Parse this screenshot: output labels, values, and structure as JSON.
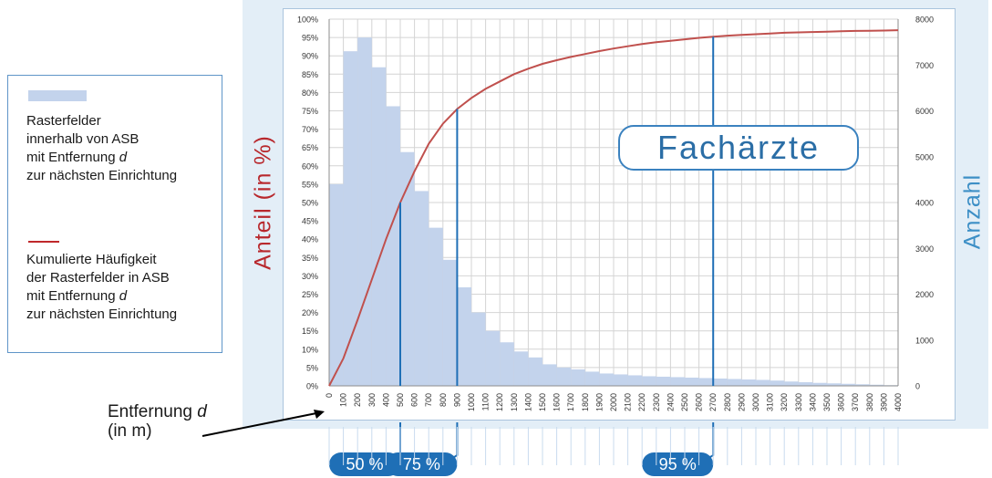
{
  "legend": {
    "bar_lines": [
      "Rasterfelder",
      "innerhalb von ASB",
      "mit Entfernung ",
      "zur nächsten Einrichtung"
    ],
    "bar_var": "d",
    "line_lines": [
      "Kumulierte Häufigkeit",
      "der Rasterfelder in ASB",
      "mit Entfernung ",
      "zur nächsten Einrichtung"
    ],
    "line_var": "d",
    "bar_color": "#c3d3ec",
    "line_color": "#c0282b"
  },
  "title_box": "Fachärzte",
  "left_axis_title": "Anteil (in %)",
  "right_axis_title": "Anzahl",
  "x_axis_title": {
    "line1": "Entfernung ",
    "var": "d",
    "line2": "(in m)"
  },
  "chart_data": {
    "type": "bar+line",
    "x_ticks": [
      "0",
      "100",
      "200",
      "300",
      "400",
      "500",
      "600",
      "700",
      "800",
      "900",
      "1000",
      "1100",
      "1200",
      "1300",
      "1400",
      "1500",
      "1600",
      "1700",
      "1800",
      "1900",
      "2000",
      "2100",
      "2200",
      "2300",
      "2400",
      "2500",
      "2600",
      "2700",
      "2800",
      "2900",
      "3000",
      "3100",
      "3200",
      "3300",
      "3400",
      "3500",
      "3600",
      "3700",
      "3800",
      "3900",
      "4000"
    ],
    "y_left_ticks": [
      "0%",
      "5%",
      "10%",
      "15%",
      "20%",
      "25%",
      "30%",
      "35%",
      "40%",
      "45%",
      "50%",
      "55%",
      "60%",
      "65%",
      "70%",
      "75%",
      "80%",
      "85%",
      "90%",
      "95%",
      "100%"
    ],
    "y_right_ticks": [
      "0",
      "1000",
      "2000",
      "3000",
      "4000",
      "5000",
      "6000",
      "7000",
      "8000"
    ],
    "ylim_left": [
      0,
      100
    ],
    "ylim_right": [
      0,
      8000
    ],
    "bar_series": {
      "name": "Rasterfelder innerhalb von ASB mit Entfernung d zur nächsten Einrichtung",
      "x_start": [
        0,
        100,
        200,
        300,
        400,
        500,
        600,
        700,
        800,
        900,
        1000,
        1100,
        1200,
        1300,
        1400,
        1500,
        1600,
        1700,
        1800,
        1900,
        2000,
        2100,
        2200,
        2300,
        2400,
        2500,
        2600,
        2700,
        2800,
        2900,
        3000,
        3100,
        3200,
        3300,
        3400,
        3500,
        3600,
        3700,
        3800,
        3900
      ],
      "values": [
        4400,
        7300,
        7600,
        6950,
        6100,
        5100,
        4250,
        3450,
        2750,
        2150,
        1600,
        1200,
        950,
        750,
        620,
        470,
        400,
        360,
        310,
        270,
        250,
        230,
        210,
        200,
        190,
        180,
        170,
        160,
        150,
        140,
        130,
        115,
        95,
        80,
        65,
        55,
        45,
        35,
        25,
        15
      ]
    },
    "line_series": {
      "name": "Kumulierte Häufigkeit der Rasterfelder in ASB mit Entfernung d zur nächsten Einrichtung",
      "x": [
        0,
        100,
        200,
        300,
        400,
        500,
        600,
        700,
        800,
        900,
        1000,
        1100,
        1200,
        1300,
        1400,
        1500,
        1600,
        1700,
        1800,
        1900,
        2000,
        2100,
        2200,
        2300,
        2400,
        2500,
        2600,
        2700,
        2800,
        2900,
        3000,
        3100,
        3200,
        3300,
        3400,
        3500,
        3600,
        3700,
        3800,
        3900,
        4000
      ],
      "values": [
        0,
        7.5,
        18,
        29,
        40,
        50,
        58.5,
        66,
        71.5,
        75.5,
        78.5,
        81,
        83,
        85,
        86.5,
        87.8,
        88.8,
        89.7,
        90.5,
        91.3,
        92,
        92.6,
        93.2,
        93.7,
        94.1,
        94.5,
        94.9,
        95.2,
        95.5,
        95.7,
        95.9,
        96.1,
        96.3,
        96.4,
        96.5,
        96.6,
        96.7,
        96.8,
        96.85,
        96.9,
        97
      ]
    },
    "markers": [
      {
        "label": "50 %",
        "x": 500
      },
      {
        "label": "75 %",
        "x": 900
      },
      {
        "label": "95 %",
        "x": 2700
      }
    ],
    "grid": true,
    "legend_position": "left"
  }
}
